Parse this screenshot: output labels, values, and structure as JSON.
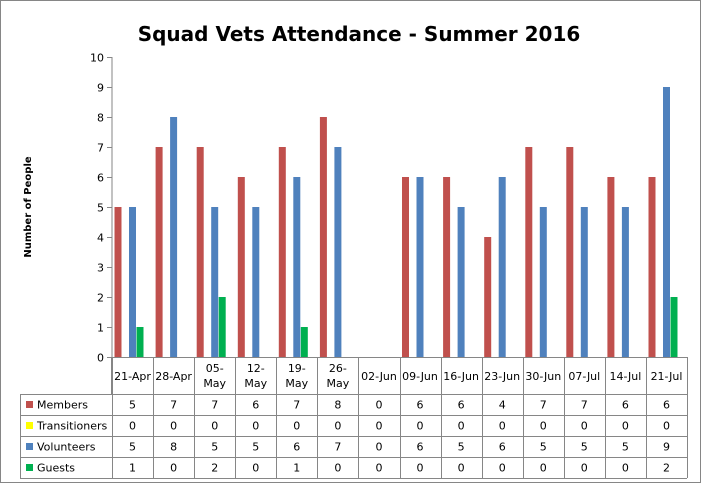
{
  "chart_data": {
    "type": "bar",
    "title": "Squad Vets Attendance - Summer 2016",
    "ylabel": "Number of People",
    "xlabel": "",
    "ylim": [
      0,
      10
    ],
    "yticks": [
      0,
      1,
      2,
      3,
      4,
      5,
      6,
      7,
      8,
      9,
      10
    ],
    "grid": false,
    "legend": "data-table-left",
    "categories": [
      [
        "21-Apr"
      ],
      [
        "28-Apr"
      ],
      [
        "05-",
        "May"
      ],
      [
        "12-",
        "May"
      ],
      [
        "19-",
        "May"
      ],
      [
        "26-",
        "May"
      ],
      [
        "02-Jun"
      ],
      [
        "09-Jun"
      ],
      [
        "16-Jun"
      ],
      [
        "23-Jun"
      ],
      [
        "30-Jun"
      ],
      [
        "07-Jul"
      ],
      [
        "14-Jul"
      ],
      [
        "21-Jul"
      ]
    ],
    "series": [
      {
        "name": "Members",
        "color": "#c0504d",
        "values": [
          5,
          7,
          7,
          6,
          7,
          8,
          0,
          6,
          6,
          4,
          7,
          7,
          6,
          6
        ]
      },
      {
        "name": "Transitioners",
        "color": "#ffff00",
        "values": [
          0,
          0,
          0,
          0,
          0,
          0,
          0,
          0,
          0,
          0,
          0,
          0,
          0,
          0
        ]
      },
      {
        "name": "Volunteers",
        "color": "#4f81bd",
        "values": [
          5,
          8,
          5,
          5,
          6,
          7,
          0,
          6,
          5,
          6,
          5,
          5,
          5,
          9
        ]
      },
      {
        "name": "Guests",
        "color": "#00b050",
        "values": [
          1,
          0,
          2,
          0,
          1,
          0,
          0,
          0,
          0,
          0,
          0,
          0,
          0,
          2
        ]
      }
    ]
  }
}
